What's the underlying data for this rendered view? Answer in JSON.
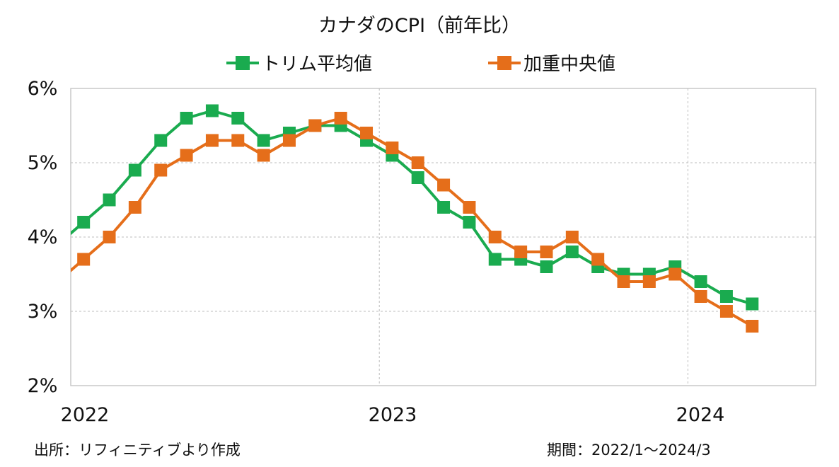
{
  "chart_data": {
    "type": "line",
    "title": "カナダのCPI（前年比）",
    "x_tick_labels": [
      "2022",
      "2023",
      "2024"
    ],
    "y_tick_labels": [
      "2%",
      "3%",
      "4%",
      "5%",
      "6%"
    ],
    "ylim": [
      2,
      6
    ],
    "grid": true,
    "legend_position": "top",
    "series": [
      {
        "name": "トリム平均値",
        "color": "#1aab4f",
        "values": [
          4.2,
          4.5,
          4.9,
          5.3,
          5.6,
          5.7,
          5.6,
          5.3,
          5.4,
          5.5,
          5.5,
          5.3,
          5.1,
          4.8,
          4.4,
          4.2,
          3.7,
          3.7,
          3.6,
          3.8,
          3.6,
          3.5,
          3.5,
          3.6,
          3.4,
          3.2,
          3.1
        ]
      },
      {
        "name": "加重中央値",
        "color": "#e56e1a",
        "values": [
          3.7,
          4.0,
          4.4,
          4.9,
          5.1,
          5.3,
          5.3,
          5.1,
          5.3,
          5.5,
          5.6,
          5.4,
          5.2,
          5.0,
          4.7,
          4.4,
          4.0,
          3.8,
          3.8,
          4.0,
          3.7,
          3.4,
          3.4,
          3.5,
          3.2,
          3.0,
          2.8
        ]
      }
    ]
  },
  "footer": {
    "source": "出所：リフィニティブより作成",
    "period": "期間：2022/1～2024/3"
  }
}
